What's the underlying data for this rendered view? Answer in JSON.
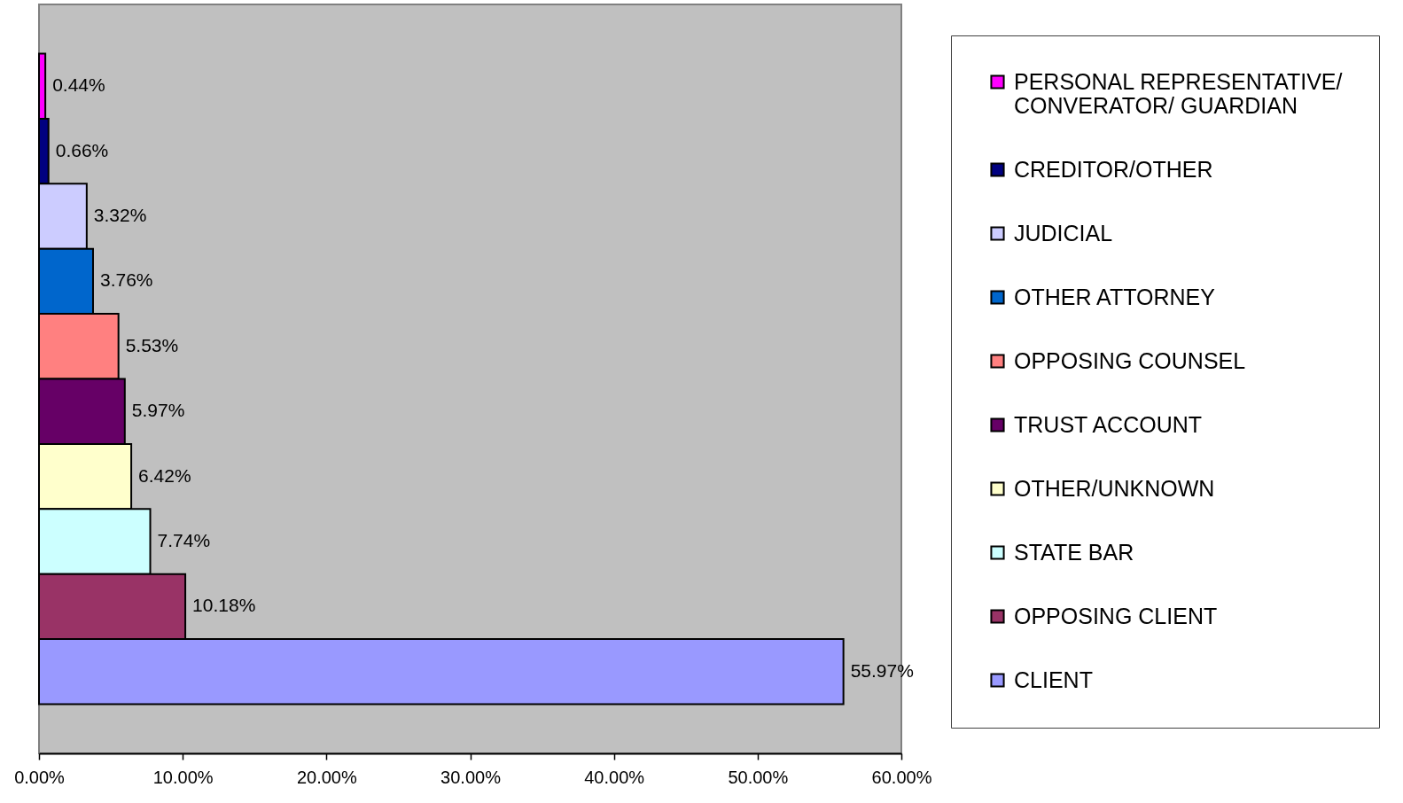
{
  "chart_data": {
    "type": "bar",
    "orientation": "horizontal",
    "categories": [
      null
    ],
    "series": [
      {
        "name": "PERSONAL REPRESENTATIVE/ CONVERATOR/ GUARDIAN",
        "color": "#ff00ff",
        "values": [
          0.44
        ],
        "value_labels": [
          "0.44%"
        ]
      },
      {
        "name": "CREDITOR/OTHER",
        "color": "#000080",
        "values": [
          0.66
        ],
        "value_labels": [
          "0.66%"
        ]
      },
      {
        "name": "JUDICIAL",
        "color": "#ccccff",
        "values": [
          3.32
        ],
        "value_labels": [
          "3.32%"
        ]
      },
      {
        "name": "OTHER ATTORNEY",
        "color": "#0066cc",
        "values": [
          3.76
        ],
        "value_labels": [
          "3.76%"
        ]
      },
      {
        "name": "OPPOSING COUNSEL",
        "color": "#ff8080",
        "values": [
          5.53
        ],
        "value_labels": [
          "5.53%"
        ]
      },
      {
        "name": "TRUST ACCOUNT",
        "color": "#660066",
        "values": [
          5.97
        ],
        "value_labels": [
          "5.97%"
        ]
      },
      {
        "name": "OTHER/UNKNOWN",
        "color": "#ffffcc",
        "values": [
          6.42
        ],
        "value_labels": [
          "6.42%"
        ]
      },
      {
        "name": "STATE BAR",
        "color": "#ccffff",
        "values": [
          7.74
        ],
        "value_labels": [
          "7.74%"
        ]
      },
      {
        "name": "OPPOSING CLIENT",
        "color": "#993366",
        "values": [
          10.18
        ],
        "value_labels": [
          "10.18%"
        ]
      },
      {
        "name": "CLIENT",
        "color": "#9999ff",
        "values": [
          55.97
        ],
        "value_labels": [
          "55.97%"
        ]
      }
    ],
    "xlim": [
      0,
      60
    ],
    "xticks": [
      {
        "value": 0,
        "label": "0.00%"
      },
      {
        "value": 10,
        "label": "10.00%"
      },
      {
        "value": 20,
        "label": "20.00%"
      },
      {
        "value": 30,
        "label": "30.00%"
      },
      {
        "value": 40,
        "label": "40.00%"
      },
      {
        "value": 50,
        "label": "50.00%"
      },
      {
        "value": 60,
        "label": "60.00%"
      }
    ],
    "tick_labels": "x",
    "legend": "right"
  }
}
